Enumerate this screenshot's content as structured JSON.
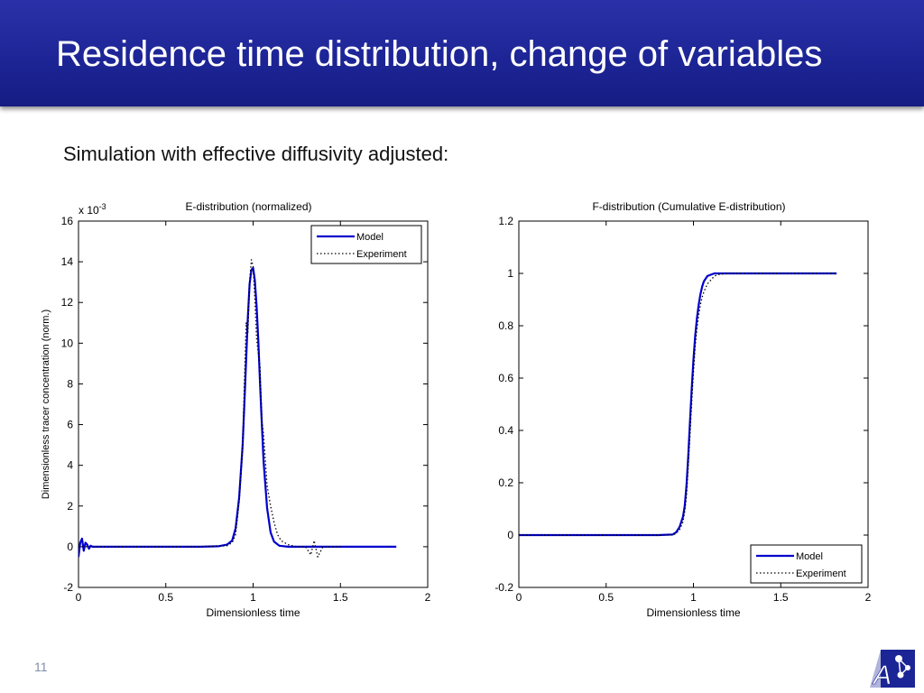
{
  "slide": {
    "title": "Residence time distribution, change of variables",
    "subtitle": "Simulation with effective diffusivity adjusted:",
    "page_number": "11"
  },
  "colors": {
    "title_bar": "#1d2596",
    "model_line": "#0000cc",
    "experiment_line": "#000000"
  },
  "icons": {
    "logo": "graph-logo-icon"
  },
  "chart_data": [
    {
      "type": "line",
      "title": "E-distribution (normalized)",
      "xlabel": "Dimensionless time",
      "ylabel": "Dimensionless tracer concentration (norm.)",
      "y_exponent_label": "x 10",
      "y_exponent": "-3",
      "xlim": [
        0,
        2
      ],
      "ylim": [
        -2,
        16
      ],
      "x_ticks": [
        "0",
        "0.5",
        "1",
        "1.5",
        "2"
      ],
      "y_ticks": [
        "-2",
        "0",
        "2",
        "4",
        "6",
        "8",
        "10",
        "12",
        "14",
        "16"
      ],
      "legend_position": "top-right",
      "grid": false,
      "series": [
        {
          "name": "Model",
          "style": "solid",
          "x": [
            0,
            0.01,
            0.02,
            0.03,
            0.04,
            0.05,
            0.06,
            0.07,
            0.08,
            0.1,
            0.15,
            0.3,
            0.5,
            0.7,
            0.8,
            0.85,
            0.88,
            0.9,
            0.92,
            0.94,
            0.95,
            0.96,
            0.97,
            0.98,
            0.99,
            1.0,
            1.01,
            1.02,
            1.03,
            1.04,
            1.05,
            1.06,
            1.08,
            1.1,
            1.12,
            1.15,
            1.2,
            1.3,
            1.5,
            1.7,
            1.82
          ],
          "y": [
            -0.5,
            0.2,
            0.4,
            -0.2,
            0.2,
            0.1,
            -0.1,
            0.05,
            0.0,
            0.0,
            0.0,
            0.0,
            0.0,
            0.0,
            0.02,
            0.1,
            0.3,
            0.9,
            2.4,
            5.0,
            7.0,
            9.2,
            11.3,
            12.9,
            13.6,
            13.7,
            13.1,
            11.8,
            10.1,
            8.0,
            6.0,
            4.2,
            1.9,
            0.7,
            0.25,
            0.05,
            0.0,
            0.0,
            0.0,
            0.0,
            0.0
          ]
        },
        {
          "name": "Experiment",
          "style": "dotted",
          "x": [
            0,
            0.05,
            0.1,
            0.3,
            0.5,
            0.7,
            0.85,
            0.88,
            0.9,
            0.92,
            0.94,
            0.95,
            0.96,
            0.97,
            0.98,
            0.99,
            1.0,
            1.01,
            1.02,
            1.03,
            1.04,
            1.05,
            1.06,
            1.08,
            1.1,
            1.12,
            1.14,
            1.16,
            1.2,
            1.25,
            1.3,
            1.33,
            1.35,
            1.37,
            1.4,
            1.5
          ],
          "y": [
            0.0,
            0.0,
            0.0,
            0.0,
            0.0,
            0.0,
            0.05,
            0.2,
            0.6,
            2.2,
            4.8,
            8.0,
            11.0,
            10.5,
            13.0,
            14.1,
            13.8,
            12.2,
            10.2,
            9.5,
            8.8,
            6.2,
            5.5,
            3.0,
            2.0,
            1.2,
            0.6,
            0.3,
            0.1,
            0.0,
            0.0,
            -0.4,
            0.3,
            -0.5,
            0.0,
            0.0
          ]
        }
      ]
    },
    {
      "type": "line",
      "title": "F-distribution (Cumulative E-distribution)",
      "xlabel": "Dimensionless time",
      "ylabel": "",
      "xlim": [
        0,
        2
      ],
      "ylim": [
        -0.2,
        1.2
      ],
      "x_ticks": [
        "0",
        "0.5",
        "1",
        "1.5",
        "2"
      ],
      "y_ticks": [
        "-0.2",
        "0",
        "0.2",
        "0.4",
        "0.6",
        "0.8",
        "1",
        "1.2"
      ],
      "legend_position": "bottom-right",
      "grid": false,
      "series": [
        {
          "name": "Model",
          "style": "solid",
          "x": [
            0,
            0.5,
            0.8,
            0.88,
            0.9,
            0.92,
            0.94,
            0.95,
            0.96,
            0.97,
            0.98,
            0.99,
            1.0,
            1.01,
            1.02,
            1.03,
            1.04,
            1.05,
            1.06,
            1.08,
            1.1,
            1.12,
            1.15,
            1.2,
            1.5,
            1.82
          ],
          "y": [
            0.0,
            0.0,
            0.0,
            0.002,
            0.01,
            0.03,
            0.07,
            0.11,
            0.19,
            0.3,
            0.43,
            0.56,
            0.67,
            0.76,
            0.83,
            0.88,
            0.92,
            0.95,
            0.97,
            0.99,
            0.995,
            1.0,
            1.0,
            1.0,
            1.0,
            1.0
          ]
        },
        {
          "name": "Experiment",
          "style": "dotted",
          "x": [
            0,
            0.5,
            0.8,
            0.88,
            0.9,
            0.92,
            0.94,
            0.95,
            0.96,
            0.97,
            0.98,
            0.99,
            1.0,
            1.01,
            1.02,
            1.03,
            1.04,
            1.05,
            1.06,
            1.08,
            1.1,
            1.12,
            1.15,
            1.2,
            1.5,
            1.82
          ],
          "y": [
            0.0,
            0.0,
            0.0,
            0.001,
            0.006,
            0.02,
            0.05,
            0.09,
            0.15,
            0.26,
            0.38,
            0.51,
            0.62,
            0.72,
            0.79,
            0.84,
            0.88,
            0.91,
            0.93,
            0.96,
            0.975,
            0.99,
            0.997,
            1.0,
            1.0,
            1.0
          ]
        }
      ]
    }
  ]
}
